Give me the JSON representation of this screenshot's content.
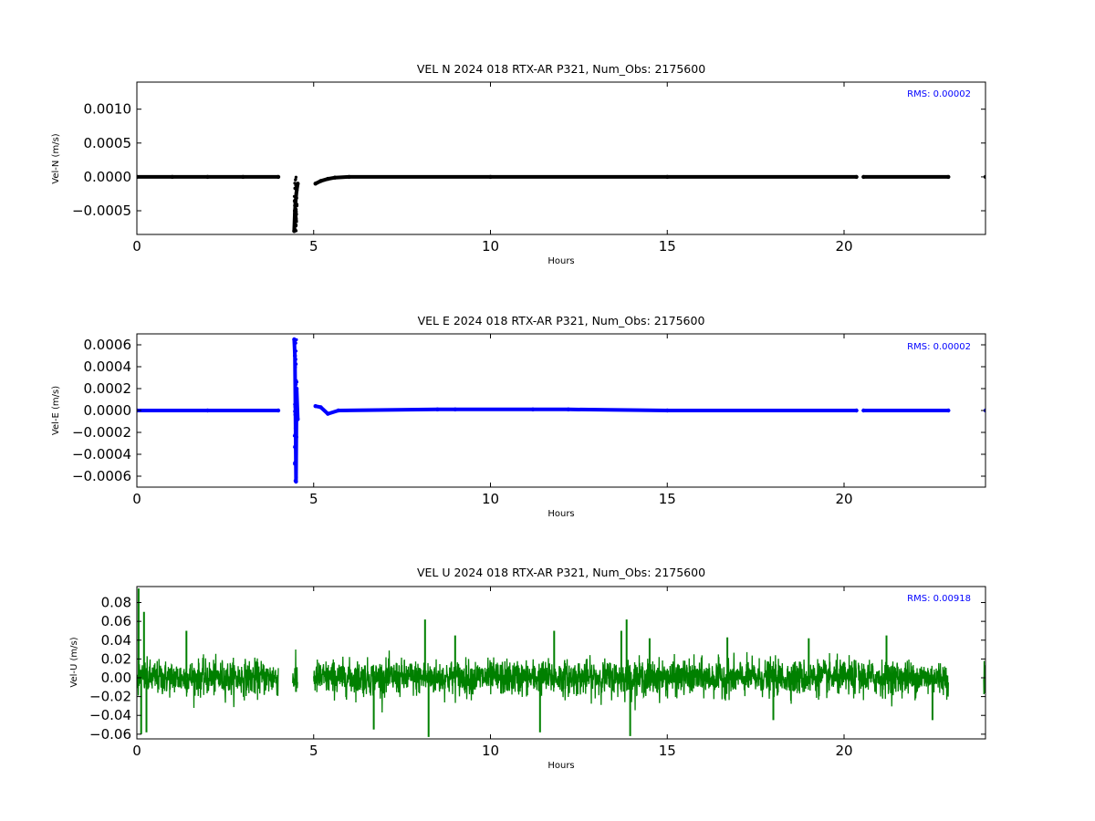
{
  "chart_data": [
    {
      "type": "scatter",
      "title": "VEL N 2024 018 RTX-AR  P321, Num_Obs: 2175600",
      "xlabel": "Hours",
      "ylabel": "Vel-N (m/s)",
      "xlim": [
        0,
        24
      ],
      "ylim": [
        -0.00085,
        0.0014
      ],
      "xticks": [
        0,
        5,
        10,
        15,
        20
      ],
      "xtick_labels": [
        "0",
        "5",
        "10",
        "15",
        "20"
      ],
      "yticks": [
        -0.0005,
        0.0,
        0.0005,
        0.001
      ],
      "ytick_labels": [
        "−0.0005",
        "0.0000",
        "0.0005",
        "0.0010"
      ],
      "rms_label": "RMS:  0.00002",
      "color": "#000000",
      "segments": [
        [
          0.0,
          4.0
        ],
        [
          4.4,
          4.55
        ],
        [
          5.0,
          20.35
        ],
        [
          20.55,
          22.95
        ],
        [
          23.95,
          24.0
        ]
      ],
      "series": [
        {
          "x": [
            0.0,
            1.0,
            2.0,
            3.0,
            4.0,
            4.45,
            4.47,
            4.5,
            4.52,
            4.55,
            5.05,
            5.2,
            5.4,
            5.6,
            6.0,
            10.0,
            15.0,
            20.35,
            20.55,
            22.95,
            24.0
          ],
          "values": [
            0.0,
            0.0,
            0.0,
            0.0,
            0.0,
            -0.0008,
            -0.0005,
            -0.0003,
            -0.0002,
            -0.0001,
            -0.0001,
            -6e-05,
            -3e-05,
            -1e-05,
            0.0,
            0.0,
            0.0,
            0.0,
            0.0,
            0.0,
            0.0
          ]
        }
      ]
    },
    {
      "type": "scatter",
      "title": "VEL E 2024 018 RTX-AR  P321, Num_Obs: 2175600",
      "xlabel": "Hours",
      "ylabel": "Vel-E (m/s)",
      "xlim": [
        0,
        24
      ],
      "ylim": [
        -0.0007,
        0.0007
      ],
      "xticks": [
        0,
        5,
        10,
        15,
        20
      ],
      "xtick_labels": [
        "0",
        "5",
        "10",
        "15",
        "20"
      ],
      "yticks": [
        -0.0006,
        -0.0004,
        -0.0002,
        0.0,
        0.0002,
        0.0004,
        0.0006
      ],
      "ytick_labels": [
        "−0.0006",
        "−0.0004",
        "−0.0002",
        "0.0000",
        "0.0002",
        "0.0004",
        "0.0006"
      ],
      "rms_label": "RMS:  0.00002",
      "color": "#0000ff",
      "segments": [
        [
          0.0,
          4.0
        ],
        [
          4.4,
          4.55
        ],
        [
          5.0,
          20.35
        ],
        [
          20.55,
          22.95
        ],
        [
          23.95,
          24.0
        ]
      ],
      "series": [
        {
          "x": [
            0.0,
            2.0,
            4.0,
            4.45,
            4.47,
            4.5,
            4.52,
            4.55,
            5.05,
            5.2,
            5.4,
            5.7,
            8.5,
            9.0,
            11.2,
            12.2,
            15.0,
            20.35,
            20.55,
            22.95,
            24.0
          ],
          "values": [
            0.0,
            0.0,
            0.0,
            0.00065,
            0.0005,
            -0.00065,
            0.0002,
            -8e-05,
            4e-05,
            3e-05,
            -3e-05,
            0.0,
            1e-05,
            1e-05,
            1e-05,
            1e-05,
            0.0,
            0.0,
            0.0,
            0.0,
            0.0
          ]
        }
      ]
    },
    {
      "type": "line",
      "title": "VEL U 2024 018 RTX-AR  P321, Num_Obs: 2175600",
      "xlabel": "Hours",
      "ylabel": "Vel-U (m/s)",
      "xlim": [
        0,
        24
      ],
      "ylim": [
        -0.065,
        0.097
      ],
      "xticks": [
        0,
        5,
        10,
        15,
        20
      ],
      "xtick_labels": [
        "0",
        "5",
        "10",
        "15",
        "20"
      ],
      "yticks": [
        -0.06,
        -0.04,
        -0.02,
        0.0,
        0.02,
        0.04,
        0.06,
        0.08
      ],
      "ytick_labels": [
        "−0.06",
        "−0.04",
        "−0.02",
        "0.00",
        "0.02",
        "0.04",
        "0.06",
        "0.08"
      ],
      "rms_label": "RMS:  0.00918",
      "color": "#008000",
      "segments": [
        [
          0.0,
          4.0
        ],
        [
          4.4,
          4.55
        ],
        [
          5.0,
          20.35
        ],
        [
          20.4,
          22.95
        ],
        [
          23.95,
          24.0
        ]
      ],
      "noise_std": 0.00918,
      "series": [
        {
          "x": [
            0.05,
            0.12,
            0.2,
            0.27,
            1.4,
            4.5,
            6.7,
            8.15,
            8.25,
            9.0,
            11.4,
            11.8,
            13.7,
            13.85,
            13.95,
            14.5,
            16.7,
            18.0,
            19.0,
            21.2,
            22.5,
            24.0
          ],
          "values": [
            0.095,
            -0.06,
            0.07,
            -0.058,
            0.05,
            -0.015,
            -0.055,
            0.062,
            -0.063,
            0.045,
            -0.058,
            0.05,
            0.05,
            0.062,
            -0.062,
            0.042,
            0.043,
            -0.045,
            0.042,
            0.045,
            -0.045,
            0.01
          ]
        }
      ]
    }
  ]
}
